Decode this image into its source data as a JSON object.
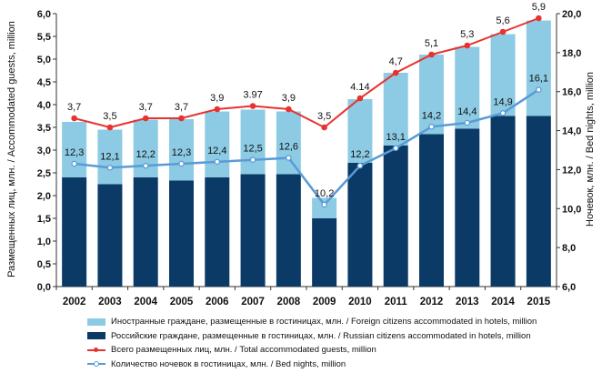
{
  "chart_data": {
    "type": "bar",
    "subtype": "stacked bar with line overlays, dual y-axis",
    "categories": [
      "2002",
      "2003",
      "2004",
      "2005",
      "2006",
      "2007",
      "2008",
      "2009",
      "2010",
      "2011",
      "2012",
      "2013",
      "2014",
      "2015"
    ],
    "ylabel_left": "Размещенных лиц, млн. / Accommodated guests,  million",
    "ylabel_right": "Ночевок, млн. / Bed nights, million",
    "ylim_left": [
      0,
      6.0
    ],
    "yticks_left": [
      "0,0",
      "0,5",
      "1,0",
      "1,5",
      "2,0",
      "2,5",
      "3,0",
      "3,5",
      "4,0",
      "4,5",
      "5,0",
      "5,5",
      "6,0"
    ],
    "ylim_right": [
      6.0,
      20.0
    ],
    "yticks_right": [
      "6,0",
      "8,0",
      "10,0",
      "12,0",
      "14,0",
      "16,0",
      "18,0",
      "20,0"
    ],
    "series": [
      {
        "name": "Российские граждане, размещенные в гостиницах, млн. / Russian citizens accommodated in hotels, million",
        "kind": "bar",
        "axis": "left",
        "color": "#0b3a66",
        "values": [
          2.4,
          2.25,
          2.4,
          2.33,
          2.4,
          2.47,
          2.47,
          1.5,
          2.72,
          3.1,
          3.35,
          3.47,
          3.75,
          3.75
        ]
      },
      {
        "name": "Иностранные граждане, размещенные в гостиницах, млн. / Foreign citizens accommodated in hotels, million",
        "kind": "bar",
        "axis": "left",
        "color": "#8ccbe3",
        "values": [
          1.22,
          1.2,
          1.27,
          1.35,
          1.45,
          1.42,
          1.38,
          0.45,
          1.4,
          1.6,
          1.75,
          1.8,
          1.8,
          2.1
        ]
      },
      {
        "name": "Всего размещенных лиц, млн. / Total accommodated guests, million",
        "kind": "line",
        "axis": "left",
        "color": "#e8322f",
        "values": [
          3.7,
          3.5,
          3.7,
          3.7,
          3.9,
          3.97,
          3.9,
          3.5,
          4.14,
          4.7,
          5.1,
          5.3,
          5.6,
          5.9
        ],
        "labels": [
          "3,7",
          "3,5",
          "3,7",
          "3,7",
          "3,9",
          "3.97",
          "3,9",
          "3,5",
          "4.14",
          "4,7",
          "5,1",
          "5,3",
          "5,6",
          "5,9"
        ]
      },
      {
        "name": "Количество ночевок в гостиницах, млн. / Bed nights, million",
        "kind": "line",
        "axis": "right",
        "color": "#5a9bd5",
        "values": [
          12.3,
          12.1,
          12.2,
          12.3,
          12.4,
          12.5,
          12.6,
          10.2,
          12.2,
          13.1,
          14.2,
          14.4,
          14.9,
          16.1
        ],
        "labels": [
          "12,3",
          "12,1",
          "12,2",
          "12,3",
          "12,4",
          "12,5",
          "12,6",
          "10,2",
          "12,2",
          "13,1",
          "14,2",
          "14,4",
          "14,9",
          "16,1"
        ]
      }
    ],
    "legend_position": "bottom"
  }
}
